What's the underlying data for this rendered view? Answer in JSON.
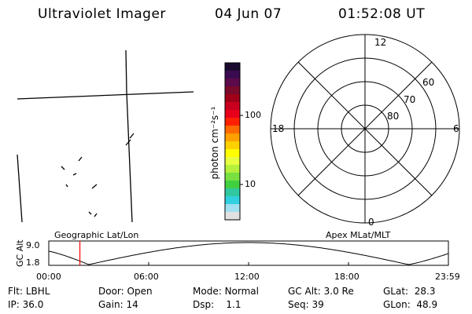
{
  "header": {
    "title": "Ultraviolet Imager",
    "date": "04 Jun 07",
    "time": "01:52:08 UT"
  },
  "colorbar": {
    "unit_label": "photon cm⁻²s⁻¹",
    "tick_100": "100",
    "tick_10": "10",
    "colors_top_to_bottom": [
      "#1a0a2e",
      "#3b0b52",
      "#5b0a4a",
      "#7a0a2a",
      "#a00018",
      "#c8001e",
      "#e8001a",
      "#ff2000",
      "#ff6a00",
      "#ffa000",
      "#ffd000",
      "#ffff00",
      "#e6ff40",
      "#b4f03c",
      "#78e040",
      "#40d040",
      "#30c8a0",
      "#30d0e0",
      "#a0e0f0",
      "#e0e0e0"
    ]
  },
  "polar_plot": {
    "mlt_labels": {
      "top": "12",
      "left": "18",
      "right": "6",
      "bottom": "0"
    },
    "lat_labels": [
      "60",
      "70",
      "80"
    ]
  },
  "altitude_plot": {
    "ylabel": "GC Alt",
    "ytick_top": "9.0",
    "ytick_bottom": "1.8",
    "left_caption": "Geographic Lat/Lon",
    "right_caption": "Apex MLat/MLT",
    "x_ticks": [
      "00:00",
      "06:00",
      "12:00",
      "18:00",
      "23:59"
    ],
    "marker_time": "01:52:08",
    "marker_color": "#ff0000",
    "curve_min_time_hours": [
      2.4,
      21.6
    ],
    "curve_max_time_hours": 12.0
  },
  "status": {
    "row1": [
      {
        "label": "Flt:",
        "value": "LBHL"
      },
      {
        "label": "Door:",
        "value": "Open"
      },
      {
        "label": "Mode:",
        "value": "Normal"
      },
      {
        "label": "GC Alt:",
        "value": "3.0 Re"
      },
      {
        "label": "GLat:",
        "value": "28.3"
      }
    ],
    "row2": [
      {
        "label": "IP:",
        "value": "36.0"
      },
      {
        "label": "Gain:",
        "value": "14"
      },
      {
        "label": "Dsp:",
        "value": "1.1"
      },
      {
        "label": "Seq:",
        "value": "39"
      },
      {
        "label": "GLon:",
        "value": "48.9"
      }
    ]
  }
}
